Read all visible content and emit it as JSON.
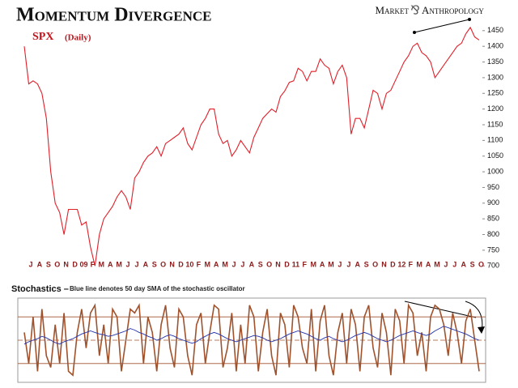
{
  "chart_data": [
    {
      "type": "line",
      "title": "Momentum Divergence",
      "subtitle": "SPX",
      "note": "(Daily)",
      "brand": [
        "Market",
        "Anthropology"
      ],
      "categories": [
        "J",
        null,
        "A",
        null,
        "S",
        null,
        "O",
        null,
        "N",
        null,
        "D",
        null,
        "09",
        null,
        "F",
        null,
        "M",
        null,
        "A",
        null,
        "M",
        null,
        "J",
        null,
        "J",
        null,
        "A",
        null,
        "S",
        null,
        "O",
        null,
        "N",
        null,
        "D",
        null,
        "10",
        null,
        "F",
        null,
        "M",
        null,
        "A",
        null,
        "M",
        null,
        "J",
        null,
        "J",
        null,
        "A",
        null,
        "S",
        null,
        "O",
        null,
        "N",
        null,
        "D",
        null,
        "11",
        null,
        "F",
        null,
        "M",
        null,
        "A",
        null,
        "M",
        null,
        "J",
        null,
        "J",
        null,
        "A",
        null,
        "S",
        null,
        "O",
        null,
        "N",
        null,
        "D",
        null,
        "12",
        null,
        "F",
        null,
        "M",
        null,
        "A",
        null,
        "M",
        null,
        "J",
        null,
        "J",
        null,
        "A",
        null,
        "S",
        null,
        "O",
        null
      ],
      "series": [
        {
          "name": "SPX",
          "color": "#e0202a",
          "values": [
            1400,
            1280,
            1290,
            1280,
            1250,
            1170,
            1000,
            900,
            870,
            800,
            880,
            880,
            880,
            830,
            840,
            760,
            700,
            800,
            850,
            870,
            890,
            920,
            940,
            920,
            880,
            980,
            1000,
            1030,
            1050,
            1060,
            1080,
            1050,
            1090,
            1100,
            1110,
            1120,
            1140,
            1090,
            1070,
            1110,
            1150,
            1170,
            1200,
            1200,
            1120,
            1090,
            1100,
            1050,
            1070,
            1100,
            1080,
            1060,
            1110,
            1140,
            1170,
            1185,
            1200,
            1190,
            1240,
            1258,
            1285,
            1290,
            1330,
            1320,
            1290,
            1320,
            1320,
            1360,
            1340,
            1330,
            1280,
            1320,
            1340,
            1300,
            1120,
            1170,
            1170,
            1140,
            1200,
            1260,
            1250,
            1200,
            1250,
            1260,
            1290,
            1320,
            1350,
            1370,
            1400,
            1410,
            1380,
            1370,
            1350,
            1300,
            1320,
            1340,
            1360,
            1380,
            1400,
            1410,
            1440,
            1460,
            1430,
            1420
          ]
        }
      ],
      "ylim": [
        680,
        1465
      ],
      "yticks": [
        700,
        750,
        800,
        850,
        900,
        950,
        1000,
        1050,
        1100,
        1150,
        1200,
        1250,
        1300,
        1350,
        1400,
        1450
      ]
    },
    {
      "type": "line",
      "title": "Stochastics –",
      "subtitle": "Blue line denotes 50 day SMA of the stochastic oscillator",
      "series": [
        {
          "name": "Stochastic",
          "color": "#a0522d",
          "values": [
            60,
            20,
            80,
            10,
            90,
            30,
            15,
            70,
            20,
            85,
            10,
            5,
            60,
            90,
            40,
            85,
            95,
            30,
            70,
            20,
            90,
            80,
            10,
            50,
            90,
            85,
            95,
            20,
            80,
            60,
            10,
            70,
            95,
            40,
            15,
            90,
            80,
            30,
            5,
            70,
            85,
            20,
            60,
            95,
            90,
            15,
            40,
            85,
            10,
            70,
            20,
            95,
            80,
            10,
            60,
            90,
            30,
            5,
            85,
            70,
            15,
            95,
            80,
            40,
            20,
            90,
            10,
            75,
            95,
            30,
            5,
            60,
            85,
            20,
            90,
            70,
            10,
            80,
            95,
            40,
            15,
            85,
            60,
            5,
            90,
            75,
            20,
            95,
            85,
            30,
            60,
            10,
            80,
            95,
            90,
            70,
            30,
            85,
            60,
            20,
            75,
            90,
            50,
            10
          ]
        },
        {
          "name": "SMA",
          "color": "#2233aa",
          "values": [
            45,
            48,
            50,
            52,
            55,
            53,
            50,
            47,
            45,
            48,
            50,
            52,
            55,
            58,
            60,
            62,
            60,
            58,
            57,
            55,
            56,
            58,
            60,
            62,
            65,
            63,
            60,
            58,
            55,
            53,
            50,
            52,
            55,
            57,
            55,
            52,
            50,
            48,
            46,
            48,
            52,
            55,
            58,
            60,
            58,
            55,
            52,
            50,
            48,
            50,
            52,
            54,
            56,
            55,
            53,
            50,
            48,
            50,
            52,
            55,
            58,
            60,
            62,
            60,
            58,
            55,
            52,
            50,
            53,
            55,
            52,
            50,
            48,
            50,
            53,
            56,
            58,
            60,
            58,
            55,
            52,
            50,
            48,
            50,
            53,
            56,
            58,
            60,
            62,
            60,
            58,
            56,
            58,
            62,
            65,
            68,
            66,
            64,
            62,
            60,
            58,
            55,
            52,
            50
          ]
        }
      ],
      "ylim": [
        0,
        100
      ],
      "levels": [
        80,
        50,
        20
      ]
    }
  ]
}
